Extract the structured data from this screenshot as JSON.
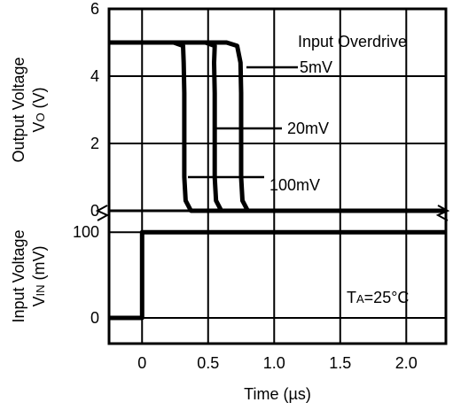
{
  "chart_data": [
    {
      "type": "line",
      "panel": "top",
      "ylabel_line1": "Output Voltage",
      "ylabel_line2_main": "V",
      "ylabel_line2_sub": "O",
      "ylabel_line2_unit": "(V)",
      "ylim": [
        0,
        6
      ],
      "yticks": [
        0,
        2,
        4,
        6
      ],
      "xlim": [
        -0.25,
        2.3
      ],
      "legend_title": "Input Overdrive",
      "series": [
        {
          "name": "5mV",
          "x": [
            -0.25,
            0.64,
            0.72,
            0.745,
            0.75,
            0.75,
            0.76,
            0.8,
            2.3
          ],
          "y": [
            5,
            5,
            4.9,
            4.4,
            3.5,
            1.0,
            0.3,
            0,
            0
          ]
        },
        {
          "name": "20mV",
          "x": [
            -0.25,
            0.48,
            0.55,
            0.545,
            0.55,
            0.55,
            0.56,
            0.6,
            2.3
          ],
          "y": [
            5,
            5,
            4.9,
            4.4,
            3.5,
            1.0,
            0.3,
            0,
            0
          ]
        },
        {
          "name": "100mV",
          "x": [
            -0.25,
            0.24,
            0.31,
            0.315,
            0.32,
            0.32,
            0.33,
            0.37,
            2.3
          ],
          "y": [
            5,
            5,
            4.9,
            4.4,
            3.5,
            1.0,
            0.3,
            0,
            0
          ]
        }
      ]
    },
    {
      "type": "line",
      "panel": "bottom",
      "ylabel_line1": "Input Voltage",
      "ylabel_line2_main": "V",
      "ylabel_line2_sub": "IN",
      "ylabel_line2_unit": "(mV)",
      "ylim": [
        -30,
        125
      ],
      "yticks": [
        0,
        100
      ],
      "xlim": [
        -0.25,
        2.3
      ],
      "xticks": [
        0,
        0.5,
        1.0,
        1.5,
        2.0
      ],
      "xtick_labels": [
        "0",
        "0.5",
        "1.0",
        "1.5",
        "2.0"
      ],
      "xlabel": "Time (µs)",
      "annotation_main": "T",
      "annotation_sub": "A",
      "annotation_rest": "=25°C",
      "series": [
        {
          "x": [
            -0.25,
            0,
            0,
            2.3
          ],
          "y": [
            0,
            0,
            100,
            100
          ]
        }
      ]
    }
  ]
}
